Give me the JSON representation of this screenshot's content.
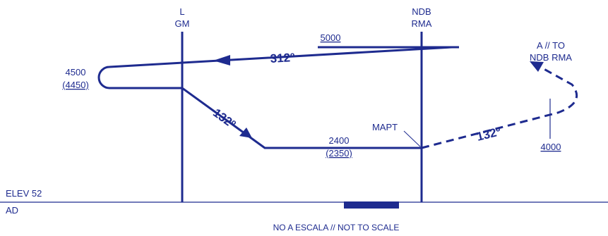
{
  "colors": {
    "ink": "#1e2b8f",
    "background": "#ffffff"
  },
  "facilities": {
    "locator": {
      "line1": "L",
      "line2": "GM"
    },
    "ndb": {
      "line1": "NDB",
      "line2": "RMA"
    }
  },
  "altitudes": {
    "initial": "5000",
    "procedure_turn": "4500",
    "procedure_turn_height": "(4450)",
    "final": "2400",
    "final_height": "(2350)",
    "missed_approach": "4000"
  },
  "headings": {
    "outbound": "312º",
    "inbound": "132º",
    "missed": "132º"
  },
  "labels": {
    "mapt": "MAPT",
    "missed_line1": "A // TO",
    "missed_line2": "NDB RMA",
    "elevation": "ELEV 52",
    "aerodrome": "AD",
    "scale_note": "NO A ESCALA // NOT TO SCALE"
  }
}
